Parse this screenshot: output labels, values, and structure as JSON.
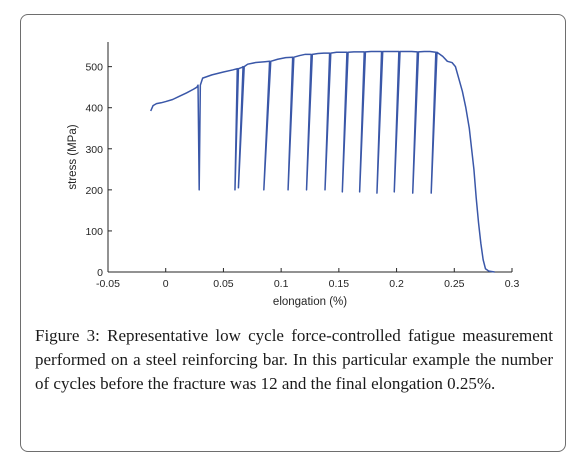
{
  "chart_data": {
    "type": "line",
    "title": "",
    "xlabel": "elongation (%)",
    "ylabel": "stress (MPa)",
    "xlim": [
      -0.05,
      0.3
    ],
    "ylim": [
      0,
      560
    ],
    "x_ticks": [
      -0.05,
      0,
      0.05,
      0.1,
      0.15,
      0.2,
      0.25,
      0.3
    ],
    "x_tick_labels": [
      "-0.05",
      "0",
      "0.05",
      "0.1",
      "0.15",
      "0.2",
      "0.25",
      "0.3"
    ],
    "y_ticks": [
      0,
      100,
      200,
      300,
      400,
      500
    ],
    "y_tick_labels": [
      "0",
      "100",
      "200",
      "300",
      "400",
      "500"
    ],
    "grid": false,
    "line_color": "#3a57a8",
    "series": [
      {
        "values": [
          [
            -0.013,
            392
          ],
          [
            -0.011,
            405
          ],
          [
            -0.008,
            410
          ],
          [
            -0.004,
            412
          ],
          [
            0.0,
            415
          ],
          [
            0.006,
            420
          ],
          [
            0.012,
            428
          ],
          [
            0.018,
            436
          ],
          [
            0.024,
            445
          ],
          [
            0.027,
            450
          ],
          [
            0.028,
            455
          ],
          [
            0.029,
            200
          ],
          [
            0.03,
            455
          ],
          [
            0.032,
            472
          ],
          [
            0.04,
            480
          ],
          [
            0.05,
            487
          ],
          [
            0.058,
            492
          ],
          [
            0.062,
            495
          ],
          [
            0.062,
            495
          ],
          [
            0.06,
            200
          ],
          [
            0.063,
            495
          ],
          [
            0.066,
            498
          ],
          [
            0.067,
            500
          ],
          [
            0.067,
            500
          ],
          [
            0.063,
            205
          ],
          [
            0.068,
            500
          ],
          [
            0.071,
            506
          ],
          [
            0.078,
            510
          ],
          [
            0.086,
            512
          ],
          [
            0.09,
            513
          ],
          [
            0.09,
            513
          ],
          [
            0.085,
            200
          ],
          [
            0.091,
            513
          ],
          [
            0.097,
            518
          ],
          [
            0.104,
            522
          ],
          [
            0.11,
            523
          ],
          [
            0.11,
            523
          ],
          [
            0.106,
            200
          ],
          [
            0.111,
            523
          ],
          [
            0.116,
            527
          ],
          [
            0.121,
            530
          ],
          [
            0.126,
            530
          ],
          [
            0.126,
            530
          ],
          [
            0.122,
            200
          ],
          [
            0.127,
            530
          ],
          [
            0.132,
            532
          ],
          [
            0.137,
            533
          ],
          [
            0.142,
            533
          ],
          [
            0.142,
            533
          ],
          [
            0.138,
            200
          ],
          [
            0.143,
            533
          ],
          [
            0.148,
            535
          ],
          [
            0.153,
            535
          ],
          [
            0.157,
            535
          ],
          [
            0.157,
            535
          ],
          [
            0.153,
            195
          ],
          [
            0.158,
            535
          ],
          [
            0.163,
            536
          ],
          [
            0.168,
            536
          ],
          [
            0.172,
            536
          ],
          [
            0.172,
            536
          ],
          [
            0.168,
            195
          ],
          [
            0.173,
            536
          ],
          [
            0.178,
            537
          ],
          [
            0.183,
            537
          ],
          [
            0.187,
            537
          ],
          [
            0.187,
            537
          ],
          [
            0.183,
            192
          ],
          [
            0.188,
            537
          ],
          [
            0.193,
            537
          ],
          [
            0.198,
            537
          ],
          [
            0.202,
            537
          ],
          [
            0.202,
            537
          ],
          [
            0.198,
            195
          ],
          [
            0.203,
            537
          ],
          [
            0.208,
            537
          ],
          [
            0.213,
            537
          ],
          [
            0.218,
            536
          ],
          [
            0.218,
            536
          ],
          [
            0.214,
            192
          ],
          [
            0.219,
            536
          ],
          [
            0.224,
            537
          ],
          [
            0.229,
            537
          ],
          [
            0.234,
            535
          ],
          [
            0.234,
            535
          ],
          [
            0.23,
            192
          ],
          [
            0.235,
            535
          ],
          [
            0.24,
            525
          ],
          [
            0.244,
            513
          ],
          [
            0.248,
            510
          ],
          [
            0.251,
            500
          ],
          [
            0.254,
            470
          ],
          [
            0.257,
            440
          ],
          [
            0.26,
            400
          ],
          [
            0.263,
            350
          ],
          [
            0.265,
            300
          ],
          [
            0.267,
            250
          ],
          [
            0.269,
            180
          ],
          [
            0.271,
            120
          ],
          [
            0.273,
            70
          ],
          [
            0.275,
            30
          ],
          [
            0.277,
            8
          ],
          [
            0.28,
            2
          ],
          [
            0.285,
            0
          ]
        ]
      }
    ]
  },
  "caption": {
    "label": "Figure 3:",
    "text": "Representative low cycle force-controlled fatigue measurement performed on a steel reinforcing bar. In this particular example the number of cycles before the fracture was 12 and the final elongation 0.25%."
  }
}
